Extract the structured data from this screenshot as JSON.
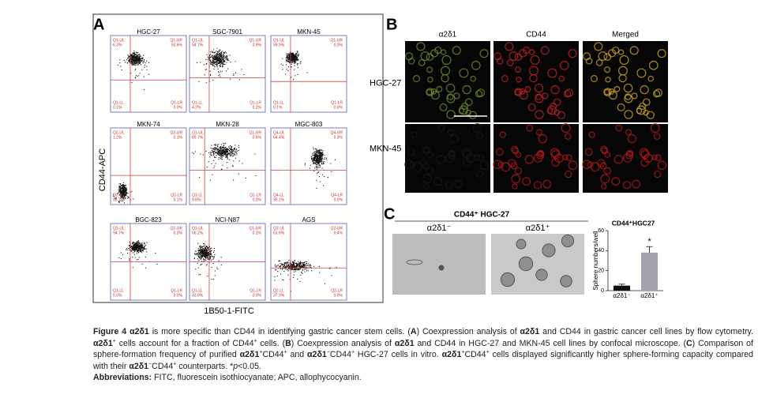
{
  "panel_a": {
    "label": "A",
    "y_axis_label": "CD44-APC",
    "x_axis_label": "1B50-1-FITC",
    "plots": [
      {
        "name": "HGC-27",
        "quadrants": [
          {
            "name": "Q1-UL",
            "value": "6.3%"
          },
          {
            "name": "Q1-UR",
            "value": "93.6%"
          },
          {
            "name": "Q1-LL",
            "value": "0.1%"
          },
          {
            "name": "Q1-LR",
            "value": "0.0%"
          }
        ]
      },
      {
        "name": "SGC-7901",
        "quadrants": [
          {
            "name": "Q1-UL",
            "value": "94.7%"
          },
          {
            "name": "Q1-UR",
            "value": "0.9%"
          },
          {
            "name": "Q1-LL",
            "value": "4.2%"
          },
          {
            "name": "Q1-LR",
            "value": "0.2%"
          }
        ]
      },
      {
        "name": "MKN-45",
        "quadrants": [
          {
            "name": "Q1-UL",
            "value": "99.9%"
          },
          {
            "name": "Q1-UR",
            "value": "0.0%"
          },
          {
            "name": "Q1-LL",
            "value": "0.1%"
          },
          {
            "name": "Q1-LR",
            "value": "0.0%"
          }
        ]
      },
      {
        "name": "MKN-74",
        "quadrants": [
          {
            "name": "Q2-UL",
            "value": "1.2%"
          },
          {
            "name": "Q2-UR",
            "value": "0.1%"
          },
          {
            "name": "Q2-LL",
            "value": "98.7%"
          },
          {
            "name": "Q2-LR",
            "value": "0.1%"
          }
        ]
      },
      {
        "name": "MKN-28",
        "quadrants": [
          {
            "name": "Q1-UL",
            "value": "89.7%"
          },
          {
            "name": "Q1-UR",
            "value": "0.5%"
          },
          {
            "name": "Q1-LL",
            "value": "9.8%"
          },
          {
            "name": "Q1-LR",
            "value": "0.0%"
          }
        ]
      },
      {
        "name": "MGC-803",
        "quadrants": [
          {
            "name": "Q4-UL",
            "value": "64.4%"
          },
          {
            "name": "Q4-UR",
            "value": "0.3%"
          },
          {
            "name": "Q4-LL",
            "value": "35.1%"
          },
          {
            "name": "Q4-LR",
            "value": "0.0%"
          }
        ]
      },
      {
        "name": "BGC-823",
        "quadrants": [
          {
            "name": "Q1-UL",
            "value": "94.7%"
          },
          {
            "name": "Q1-UR",
            "value": "0.3%"
          },
          {
            "name": "Q1-LL",
            "value": "5.0%"
          },
          {
            "name": "Q1-LR",
            "value": "0.0%"
          }
        ]
      },
      {
        "name": "NCI-N87",
        "quadrants": [
          {
            "name": "Q1-UL",
            "value": "66.2%"
          },
          {
            "name": "Q1-UR",
            "value": "0.2%"
          },
          {
            "name": "Q1-LL",
            "value": "33.6%"
          },
          {
            "name": "Q1-LR",
            "value": "0.0%"
          }
        ]
      },
      {
        "name": "AGS",
        "quadrants": [
          {
            "name": "Q2-UL",
            "value": "61.6%"
          },
          {
            "name": "Q2-UR",
            "value": "0.4%"
          },
          {
            "name": "Q2-LL",
            "value": "37.9%"
          },
          {
            "name": "Q2-LR",
            "value": "0.0%"
          }
        ]
      }
    ]
  },
  "panel_b": {
    "label": "B",
    "columns": [
      "α2δ1",
      "CD44",
      "Merged"
    ],
    "rows": [
      "HGC-27",
      "MKN-45"
    ]
  },
  "panel_c": {
    "label": "C",
    "heading": "CD44⁺ HGC-27",
    "image_labels": [
      "α2δ1⁻",
      "α2δ1⁺"
    ]
  },
  "chart_data": {
    "type": "bar",
    "title": "CD44⁺HGC27",
    "y_label": "Sphere numbers/well",
    "categories": [
      "α2δ1⁻",
      "α2δ1⁺"
    ],
    "values": [
      5,
      38
    ],
    "errors": [
      1.5,
      6
    ],
    "colors": [
      "#111111",
      "#a3a3ad"
    ],
    "annotation": "*",
    "ylim": [
      0,
      60
    ],
    "yticks": [
      0,
      20,
      40,
      60
    ]
  },
  "caption": {
    "runs": [
      {
        "text": "Figure 4 ",
        "style": "b"
      },
      {
        "text": "α2δ1",
        "style": "b"
      },
      {
        "text": " is more specific than CD44 in identifying gastric cancer stem cells. (",
        "style": "n"
      },
      {
        "text": "A",
        "style": "b"
      },
      {
        "text": ") Coexpression analysis of ",
        "style": "n"
      },
      {
        "text": "α2δ1",
        "style": "b"
      },
      {
        "text": " and CD44 in gastric cancer cell lines by flow cytometry. ",
        "style": "n"
      },
      {
        "text": "α2δ1",
        "style": "b"
      },
      {
        "text": "+",
        "style": "sup"
      },
      {
        "text": " cells account for a fraction of CD44",
        "style": "n"
      },
      {
        "text": "+",
        "style": "sup"
      },
      {
        "text": " cells. (",
        "style": "n"
      },
      {
        "text": "B",
        "style": "b"
      },
      {
        "text": ") Coexpression analysis of ",
        "style": "n"
      },
      {
        "text": "α2δ1",
        "style": "b"
      },
      {
        "text": " and CD44 in HGC-27 and MKN-45 cell lines by confocal microscope. (",
        "style": "n"
      },
      {
        "text": "C",
        "style": "b"
      },
      {
        "text": ") Comparison of sphere-formation frequency of purified ",
        "style": "n"
      },
      {
        "text": "α2δ1",
        "style": "b"
      },
      {
        "text": "+",
        "style": "sup"
      },
      {
        "text": "CD44",
        "style": "n"
      },
      {
        "text": "+",
        "style": "sup"
      },
      {
        "text": " and ",
        "style": "n"
      },
      {
        "text": "α2δ1",
        "style": "b"
      },
      {
        "text": "−",
        "style": "sup"
      },
      {
        "text": "CD44",
        "style": "n"
      },
      {
        "text": "+",
        "style": "sup"
      },
      {
        "text": " HGC-27 cells in vitro. ",
        "style": "n"
      },
      {
        "text": "α2δ1",
        "style": "b"
      },
      {
        "text": "+",
        "style": "sup"
      },
      {
        "text": "CD44",
        "style": "n"
      },
      {
        "text": "+",
        "style": "sup"
      },
      {
        "text": " cells displayed significantly higher sphere-forming capacity compared with their ",
        "style": "n"
      },
      {
        "text": "α2δ1",
        "style": "b"
      },
      {
        "text": "−",
        "style": "sup"
      },
      {
        "text": "CD44",
        "style": "n"
      },
      {
        "text": "+",
        "style": "sup"
      },
      {
        "text": " counterparts. *",
        "style": "n"
      },
      {
        "text": "p",
        "style": "i"
      },
      {
        "text": "<0.05.",
        "style": "n"
      }
    ],
    "abbreviations": [
      {
        "text": "Abbreviations:",
        "style": "b"
      },
      {
        "text": " FITC, fluorescein isothiocyanate; APC, allophycocyanin.",
        "style": "n"
      }
    ]
  }
}
